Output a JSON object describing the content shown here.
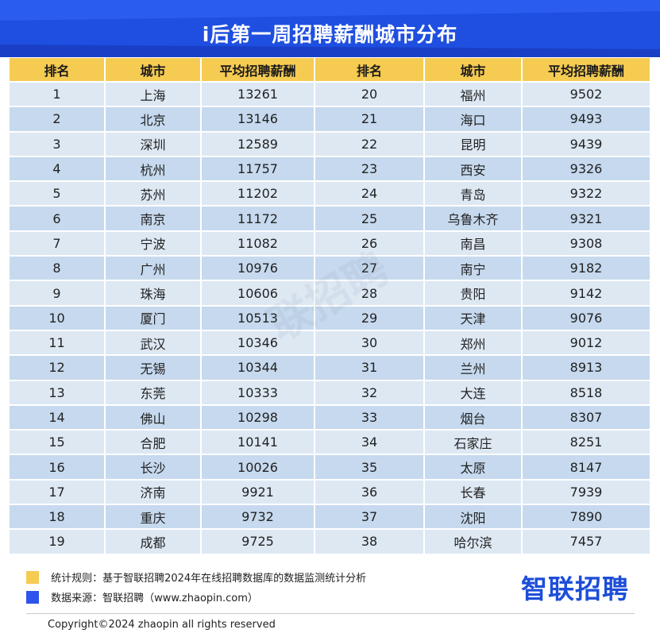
{
  "header": {
    "title": "i后第一周招聘薪酬城市分布"
  },
  "table": {
    "columns": [
      "排名",
      "城市",
      "平均招聘薪酬",
      "排名",
      "城市",
      "平均招聘薪酬"
    ],
    "rows": [
      [
        "1",
        "上海",
        "13261",
        "20",
        "福州",
        "9502"
      ],
      [
        "2",
        "北京",
        "13146",
        "21",
        "海口",
        "9493"
      ],
      [
        "3",
        "深圳",
        "12589",
        "22",
        "昆明",
        "9439"
      ],
      [
        "4",
        "杭州",
        "11757",
        "23",
        "西安",
        "9326"
      ],
      [
        "5",
        "苏州",
        "11202",
        "24",
        "青岛",
        "9322"
      ],
      [
        "6",
        "南京",
        "11172",
        "25",
        "乌鲁木齐",
        "9321"
      ],
      [
        "7",
        "宁波",
        "11082",
        "26",
        "南昌",
        "9308"
      ],
      [
        "8",
        "广州",
        "10976",
        "27",
        "南宁",
        "9182"
      ],
      [
        "9",
        "珠海",
        "10606",
        "28",
        "贵阳",
        "9142"
      ],
      [
        "10",
        "厦门",
        "10513",
        "29",
        "天津",
        "9076"
      ],
      [
        "11",
        "武汉",
        "10346",
        "30",
        "郑州",
        "9012"
      ],
      [
        "12",
        "无锡",
        "10344",
        "31",
        "兰州",
        "8913"
      ],
      [
        "13",
        "东莞",
        "10333",
        "32",
        "大连",
        "8518"
      ],
      [
        "14",
        "佛山",
        "10298",
        "33",
        "烟台",
        "8307"
      ],
      [
        "15",
        "合肥",
        "10141",
        "34",
        "石家庄",
        "8251"
      ],
      [
        "16",
        "长沙",
        "10026",
        "35",
        "太原",
        "8147"
      ],
      [
        "17",
        "济南",
        "9921",
        "36",
        "长春",
        "7939"
      ],
      [
        "18",
        "重庆",
        "9732",
        "37",
        "沈阳",
        "7890"
      ],
      [
        "19",
        "成都",
        "9725",
        "38",
        "哈尔滨",
        "7457"
      ]
    ]
  },
  "watermark": "联招聘",
  "legend": {
    "rule": {
      "text": "统计规则：基于智联招聘2024年在线招聘数据库的数据监测统计分析",
      "color": "#f5cb52"
    },
    "source": {
      "text": "数据来源：智联招聘（www.zhaopin.com）",
      "color": "#2f54eb"
    }
  },
  "logo": "智联招聘",
  "footer": {
    "copyright": "Copyright©2024 zhaopin all rights reserved"
  },
  "colors": {
    "banner": "#1f4fe0",
    "header_row": "#f5cb52",
    "row_light": "#dde8f3",
    "row_dark": "#c6d9ee",
    "logo": "#1d4ed8"
  }
}
